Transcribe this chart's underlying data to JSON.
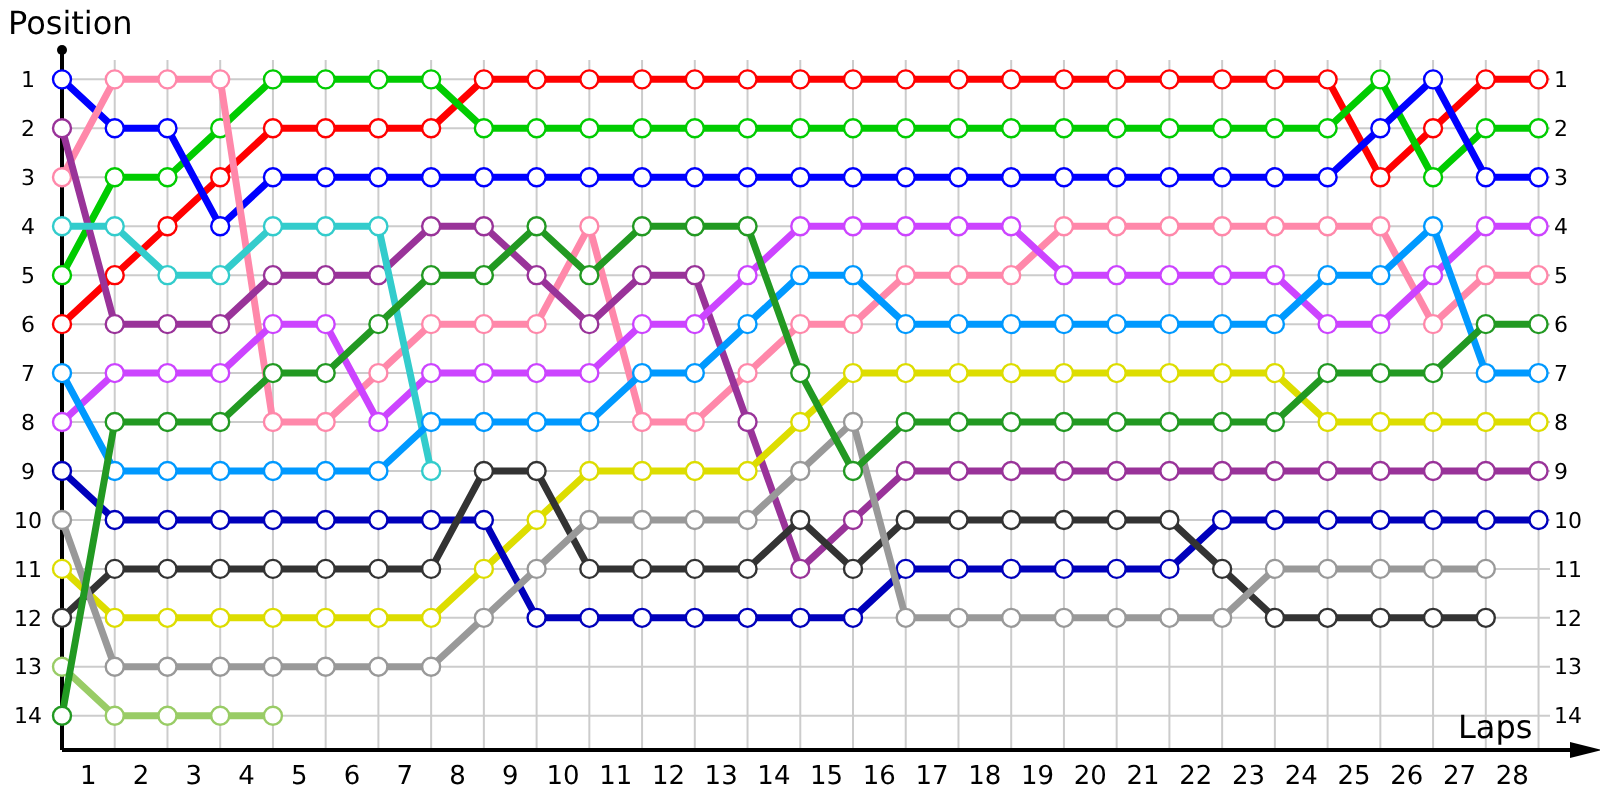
{
  "chart_data": {
    "type": "line",
    "xlabel": "Laps",
    "ylabel": "Position",
    "x": [
      0,
      1,
      2,
      3,
      4,
      5,
      6,
      7,
      8,
      9,
      10,
      11,
      12,
      13,
      14,
      15,
      16,
      17,
      18,
      19,
      20,
      21,
      22,
      23,
      24,
      25,
      26,
      27,
      28
    ],
    "xlim": [
      0,
      28.9
    ],
    "xticks": [
      {
        "value": 0.5,
        "label": "1"
      },
      {
        "value": 1.5,
        "label": "2"
      },
      {
        "value": 2.5,
        "label": "3"
      },
      {
        "value": 3.5,
        "label": "4"
      },
      {
        "value": 4.5,
        "label": "5"
      },
      {
        "value": 5.5,
        "label": "6"
      },
      {
        "value": 6.5,
        "label": "7"
      },
      {
        "value": 7.5,
        "label": "8"
      },
      {
        "value": 8.5,
        "label": "9"
      },
      {
        "value": 9.5,
        "label": "10"
      },
      {
        "value": 10.5,
        "label": "11"
      },
      {
        "value": 11.5,
        "label": "12"
      },
      {
        "value": 12.5,
        "label": "13"
      },
      {
        "value": 13.5,
        "label": "14"
      },
      {
        "value": 14.5,
        "label": "15"
      },
      {
        "value": 15.5,
        "label": "16"
      },
      {
        "value": 16.5,
        "label": "17"
      },
      {
        "value": 17.5,
        "label": "18"
      },
      {
        "value": 18.5,
        "label": "19"
      },
      {
        "value": 19.5,
        "label": "20"
      },
      {
        "value": 20.5,
        "label": "21"
      },
      {
        "value": 21.5,
        "label": "22"
      },
      {
        "value": 22.5,
        "label": "23"
      },
      {
        "value": 23.5,
        "label": "24"
      },
      {
        "value": 24.5,
        "label": "25"
      },
      {
        "value": 25.5,
        "label": "26"
      },
      {
        "value": 26.5,
        "label": "27"
      },
      {
        "value": 27.5,
        "label": "28"
      }
    ],
    "ylim": [
      14.7,
      0.4
    ],
    "yticks": [
      1,
      2,
      3,
      4,
      5,
      6,
      7,
      8,
      9,
      10,
      11,
      12,
      13,
      14
    ],
    "y2lim": [
      14.7,
      0.4
    ],
    "y2ticks": [
      1,
      2,
      3,
      4,
      5,
      6,
      7,
      8,
      9,
      10,
      11,
      12,
      13,
      14
    ],
    "grid": true,
    "marker": "circle",
    "line_style": "solid",
    "series": [
      {
        "color": "#ff0000",
        "values": [
          6,
          5,
          4,
          3,
          2,
          2,
          2,
          2,
          1,
          1,
          1,
          1,
          1,
          1,
          1,
          1,
          1,
          1,
          1,
          1,
          1,
          1,
          1,
          1,
          1,
          3,
          2,
          1,
          1
        ]
      },
      {
        "color": "#00cc00",
        "values": [
          5,
          3,
          3,
          2,
          1,
          1,
          1,
          1,
          2,
          2,
          2,
          2,
          2,
          2,
          2,
          2,
          2,
          2,
          2,
          2,
          2,
          2,
          2,
          2,
          2,
          1,
          3,
          2,
          2
        ]
      },
      {
        "color": "#0000ff",
        "values": [
          1,
          2,
          2,
          4,
          3,
          3,
          3,
          3,
          3,
          3,
          3,
          3,
          3,
          3,
          3,
          3,
          3,
          3,
          3,
          3,
          3,
          3,
          3,
          3,
          3,
          2,
          1,
          3,
          3
        ]
      },
      {
        "color": "#ff88aa",
        "values": [
          3,
          1,
          1,
          1,
          8,
          8,
          7,
          6,
          6,
          6,
          4,
          8,
          8,
          7,
          6,
          6,
          5,
          5,
          5,
          4,
          4,
          4,
          4,
          4,
          4,
          4,
          6,
          5,
          5
        ]
      },
      {
        "color": "#993399",
        "values": [
          2,
          6,
          6,
          6,
          5,
          5,
          5,
          4,
          4,
          5,
          6,
          5,
          5,
          8,
          11,
          10,
          9,
          9,
          9,
          9,
          9,
          9,
          9,
          9,
          9,
          9,
          9,
          9,
          9
        ]
      },
      {
        "color": "#cc44ff",
        "values": [
          8,
          7,
          7,
          7,
          6,
          6,
          8,
          7,
          7,
          7,
          7,
          6,
          6,
          5,
          4,
          4,
          4,
          4,
          4,
          5,
          5,
          5,
          5,
          5,
          6,
          6,
          5,
          4,
          4
        ]
      },
      {
        "color": "#33cccc",
        "values": [
          4,
          4,
          5,
          5,
          4,
          4,
          4,
          9,
          null,
          null,
          null,
          null,
          null,
          null,
          null,
          null,
          null,
          null,
          null,
          null,
          null,
          null,
          null,
          null,
          null,
          null,
          null,
          null,
          null
        ]
      },
      {
        "color": "#0099ff",
        "values": [
          7,
          9,
          9,
          9,
          9,
          9,
          9,
          8,
          8,
          8,
          8,
          7,
          7,
          6,
          5,
          5,
          6,
          6,
          6,
          6,
          6,
          6,
          6,
          6,
          5,
          5,
          4,
          7,
          7
        ]
      },
      {
        "color": "#dddd00",
        "values": [
          11,
          12,
          12,
          12,
          12,
          12,
          12,
          12,
          11,
          10,
          9,
          9,
          9,
          9,
          8,
          7,
          7,
          7,
          7,
          7,
          7,
          7,
          7,
          7,
          8,
          8,
          8,
          8,
          8
        ]
      },
      {
        "color": "#0000bb",
        "values": [
          9,
          10,
          10,
          10,
          10,
          10,
          10,
          10,
          10,
          12,
          12,
          12,
          12,
          12,
          12,
          12,
          11,
          11,
          11,
          11,
          11,
          11,
          10,
          10,
          10,
          10,
          10,
          10,
          10
        ]
      },
      {
        "color": "#333333",
        "values": [
          12,
          11,
          11,
          11,
          11,
          11,
          11,
          11,
          9,
          9,
          11,
          11,
          11,
          11,
          10,
          11,
          10,
          10,
          10,
          10,
          10,
          10,
          11,
          12,
          12,
          12,
          12,
          12,
          null
        ]
      },
      {
        "color": "#999999",
        "values": [
          10,
          13,
          13,
          13,
          13,
          13,
          13,
          13,
          12,
          11,
          10,
          10,
          10,
          10,
          9,
          8,
          12,
          12,
          12,
          12,
          12,
          12,
          12,
          11,
          11,
          11,
          11,
          11,
          null
        ]
      },
      {
        "color": "#99cc66",
        "values": [
          13,
          14,
          14,
          14,
          14,
          null,
          null,
          null,
          null,
          null,
          null,
          null,
          null,
          null,
          null,
          null,
          null,
          null,
          null,
          null,
          null,
          null,
          null,
          null,
          null,
          null,
          null,
          null,
          null
        ]
      },
      {
        "color": "#229922",
        "values": [
          14,
          8,
          8,
          8,
          7,
          7,
          6,
          5,
          5,
          4,
          5,
          4,
          4,
          4,
          7,
          9,
          8,
          8,
          8,
          8,
          8,
          8,
          8,
          8,
          7,
          7,
          7,
          6,
          6
        ]
      }
    ]
  }
}
